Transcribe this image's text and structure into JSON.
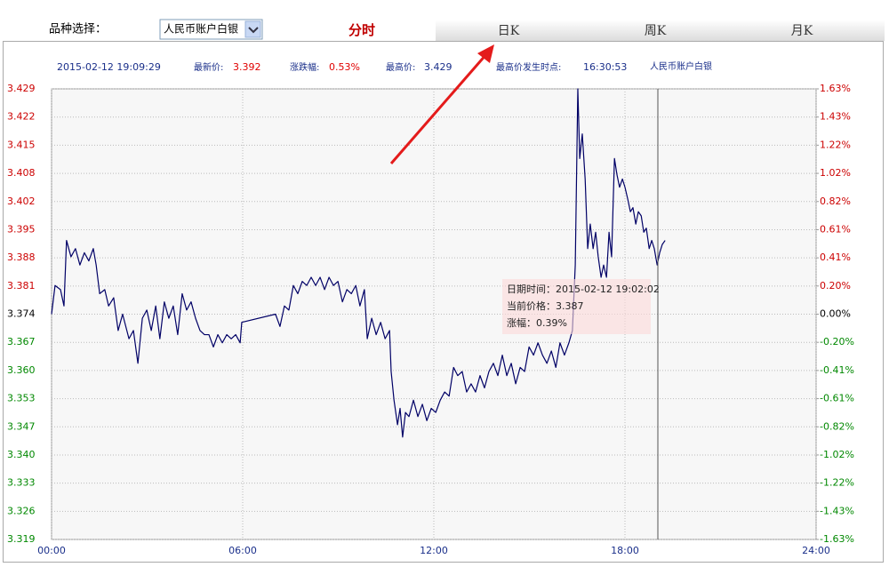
{
  "header": {
    "variety_label": "品种选择：",
    "variety_select": "人民币账户白银",
    "tabs": [
      "分时",
      "日K",
      "周K",
      "月K"
    ]
  },
  "info": {
    "datetime": "2015-02-12 19:09:29",
    "latest_label": "最新价:",
    "latest_value": "3.392",
    "change_label": "涨跌幅:",
    "change_value": "0.53%",
    "high_label": "最高价:",
    "high_value": "3.429",
    "high_time_label": "最高价发生时点:",
    "high_time": "16:30:53",
    "instrument": "人民币账户白银"
  },
  "tooltip": {
    "datetime": "日期时间：2015-02-12 19:02:02",
    "price": "当前价格：3.387",
    "change": "涨幅：0.39%"
  },
  "chart_data": {
    "type": "line",
    "color": "#000066",
    "grid": true,
    "up_color": "#cc0000",
    "down_color": "#008800",
    "x": [
      0,
      0.11,
      0.28,
      0.39,
      0.47,
      0.61,
      0.75,
      0.89,
      1.03,
      1.17,
      1.31,
      1.4,
      1.51,
      1.67,
      1.79,
      1.95,
      2.09,
      2.23,
      2.43,
      2.57,
      2.71,
      2.85,
      2.99,
      3.13,
      3.27,
      3.4,
      3.54,
      3.68,
      3.82,
      3.96,
      4.1,
      4.24,
      4.38,
      4.52,
      4.66,
      4.8,
      4.94,
      5.08,
      5.22,
      5.36,
      5.5,
      5.64,
      5.78,
      5.92,
      5.97,
      7.03,
      7.17,
      7.31,
      7.45,
      7.59,
      7.73,
      7.87,
      8.01,
      8.15,
      8.29,
      8.43,
      8.57,
      8.71,
      8.85,
      8.99,
      9.13,
      9.27,
      9.41,
      9.55,
      9.68,
      9.82,
      9.91,
      10.05,
      10.19,
      10.33,
      10.47,
      10.61,
      10.66,
      10.75,
      10.86,
      10.94,
      11.02,
      11.11,
      11.22,
      11.36,
      11.5,
      11.64,
      11.78,
      11.92,
      12.06,
      12.2,
      12.34,
      12.48,
      12.62,
      12.75,
      12.89,
      13.03,
      13.17,
      13.31,
      13.45,
      13.59,
      13.73,
      13.87,
      14.01,
      14.15,
      14.29,
      14.43,
      14.57,
      14.71,
      14.85,
      14.99,
      15.13,
      15.27,
      15.41,
      15.55,
      15.69,
      15.83,
      15.96,
      16.1,
      16.24,
      16.35,
      16.44,
      16.52,
      16.58,
      16.66,
      16.75,
      16.83,
      16.91,
      17.0,
      17.08,
      17.16,
      17.25,
      17.33,
      17.42,
      17.5,
      17.58,
      17.67,
      17.75,
      17.83,
      17.92,
      18.0,
      18.09,
      18.17,
      18.25,
      18.34,
      18.42,
      18.51,
      18.59,
      18.67,
      18.76,
      18.84,
      18.92,
      19.01,
      19.09,
      19.17,
      19.26
    ],
    "values": [
      3.374,
      3.381,
      3.38,
      3.376,
      3.392,
      3.388,
      3.39,
      3.386,
      3.389,
      3.387,
      3.39,
      3.386,
      3.379,
      3.38,
      3.376,
      3.378,
      3.37,
      3.374,
      3.368,
      3.37,
      3.362,
      3.373,
      3.375,
      3.37,
      3.376,
      3.368,
      3.377,
      3.373,
      3.376,
      3.369,
      3.379,
      3.375,
      3.377,
      3.373,
      3.37,
      3.369,
      3.369,
      3.366,
      3.369,
      3.367,
      3.369,
      3.368,
      3.369,
      3.367,
      3.372,
      3.374,
      3.371,
      3.376,
      3.375,
      3.381,
      3.379,
      3.382,
      3.381,
      3.383,
      3.381,
      3.383,
      3.38,
      3.383,
      3.381,
      3.382,
      3.377,
      3.38,
      3.379,
      3.381,
      3.376,
      3.38,
      3.368,
      3.373,
      3.369,
      3.372,
      3.368,
      3.37,
      3.36,
      3.353,
      3.347,
      3.351,
      3.344,
      3.35,
      3.349,
      3.353,
      3.349,
      3.352,
      3.348,
      3.351,
      3.35,
      3.353,
      3.355,
      3.354,
      3.361,
      3.359,
      3.36,
      3.355,
      3.357,
      3.355,
      3.359,
      3.356,
      3.36,
      3.362,
      3.359,
      3.364,
      3.359,
      3.362,
      3.357,
      3.361,
      3.36,
      3.366,
      3.364,
      3.367,
      3.364,
      3.362,
      3.365,
      3.361,
      3.367,
      3.364,
      3.367,
      3.37,
      3.386,
      3.429,
      3.412,
      3.418,
      3.407,
      3.39,
      3.396,
      3.39,
      3.394,
      3.388,
      3.383,
      3.386,
      3.383,
      3.394,
      3.388,
      3.412,
      3.408,
      3.405,
      3.407,
      3.405,
      3.402,
      3.399,
      3.4,
      3.396,
      3.399,
      3.398,
      3.394,
      3.395,
      3.39,
      3.392,
      3.39,
      3.386,
      3.389,
      3.391,
      3.392
    ],
    "xlim": [
      0,
      24
    ],
    "xticks": [
      {
        "value": 0,
        "label": "00:00"
      },
      {
        "value": 6,
        "label": "06:00"
      },
      {
        "value": 12,
        "label": "12:00"
      },
      {
        "value": 18,
        "label": "18:00"
      },
      {
        "value": 24,
        "label": "24:00"
      }
    ],
    "ylim": [
      3.319,
      3.429
    ],
    "yticks": [
      3.319,
      {
        "value": 3.325875,
        "label": "3.326"
      },
      {
        "value": 3.33275,
        "label": "3.333"
      },
      {
        "value": 3.339625,
        "label": "3.340"
      },
      {
        "value": 3.3465,
        "label": "3.347"
      },
      {
        "value": 3.353375,
        "label": "3.353"
      },
      {
        "value": 3.36025,
        "label": "3.360"
      },
      {
        "value": 3.367125,
        "label": "3.367"
      },
      3.374,
      {
        "value": 3.380875,
        "label": "3.381"
      },
      {
        "value": 3.38775,
        "label": "3.388"
      },
      {
        "value": 3.394625,
        "label": "3.395"
      },
      {
        "value": 3.4015,
        "label": "3.402"
      },
      {
        "value": 3.408375,
        "label": "3.408"
      },
      {
        "value": 3.41525,
        "label": "3.415"
      },
      {
        "value": 3.422125,
        "label": "3.422"
      },
      3.429
    ],
    "y2lim": [
      -1.63,
      1.63
    ],
    "y2ticks": [
      {
        "value": -1.63,
        "label": "-1.63%"
      },
      {
        "value": -1.42625,
        "label": "-1.43%"
      },
      {
        "value": -1.2225,
        "label": "-1.22%"
      },
      {
        "value": -1.01875,
        "label": "-1.02%"
      },
      {
        "value": -0.815,
        "label": "-0.82%"
      },
      {
        "value": -0.61125,
        "label": "-0.61%"
      },
      {
        "value": -0.4075,
        "label": "-0.41%"
      },
      {
        "value": -0.20375,
        "label": "-0.20%"
      },
      {
        "value": 0,
        "label": "0.00%"
      },
      {
        "value": 0.20375,
        "label": "0.20%"
      },
      {
        "value": 0.4075,
        "label": "0.41%"
      },
      {
        "value": 0.61125,
        "label": "0.61%"
      },
      {
        "value": 0.815,
        "label": "0.82%"
      },
      {
        "value": 1.01875,
        "label": "1.02%"
      },
      {
        "value": 1.2225,
        "label": "1.22%"
      },
      {
        "value": 1.42625,
        "label": "1.43%"
      },
      {
        "value": 1.63,
        "label": "1.63%"
      }
    ]
  }
}
